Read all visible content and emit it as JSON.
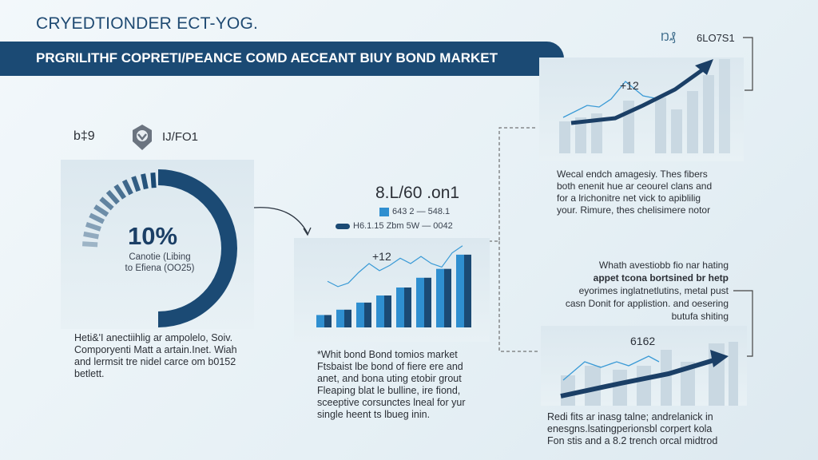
{
  "header": {
    "title": "CRYEDTIONDER ECT-YOG.",
    "banner": "PRGRILITHF COPRETI/PEANCE COMD AECEANT BIUY BOND MARKET"
  },
  "left": {
    "icon_label_1": "b‡9",
    "icon_label_2": "IJ/FO1",
    "gauge": {
      "value_text": "10%",
      "fill_fraction": 0.5,
      "sub_line1": "Canotie (Libing",
      "sub_line2": "to Efiena (OO25)"
    },
    "paragraph": [
      "Heti&'I anectiihlig ar ampolelo, Soiv.",
      "Comporyenti Matt a artain.Inet. Wiah",
      "and lermsit tre nidel carce om b0152",
      "betlett."
    ]
  },
  "middle": {
    "title": "8.L/60 .on1",
    "legend": [
      {
        "label": "643 2 — 548.1",
        "color": "#2f8fd0"
      },
      {
        "label": "H6.1.15 Zbm 5W — 0042",
        "color": "#1b4a74"
      }
    ],
    "chart_label": "+12",
    "bars": [
      14,
      20,
      28,
      36,
      45,
      56,
      66,
      82
    ],
    "line": [
      52,
      46,
      50,
      62,
      72,
      64,
      70,
      78,
      72,
      80,
      72,
      68,
      84,
      92
    ],
    "paragraph": [
      "*Whit bond Bond tomios market",
      "Ftsbaist lbe bond of fiere ere and",
      "anet, and bona uting etobir grout",
      "Fleaping blat le bulline, ire fiond,",
      "sceeptive corsunctes lneal for yur",
      "single heent ts lbueg inin."
    ]
  },
  "right_top": {
    "label": "6LO7S1",
    "icon_label": "Ŋ₰",
    "chart_label": "+12",
    "paragraph": [
      "Wecal endch amagesiy.  Thes fibers",
      "both enenit hue ar ceourel clans and",
      "for a lrichonitre net vick to apiblilig",
      "your. Rimure, thes chelisimere notor"
    ]
  },
  "right_bottom": {
    "intro": [
      "Whath avestiobb fio nar hating",
      "appet tcona bortsined br hetp",
      "eyorimes inglatnetlutins, metal pust",
      "casn Donit for applistion. and oesering",
      "butufa shiting"
    ],
    "chart_label": "6162",
    "paragraph": [
      "Redi fits ar inasg talne; andrelanick in",
      "enesgns.lsatingperionsbl corpert kola",
      "Fon stis and a 8.2 trench orcal midtrod"
    ]
  },
  "colors": {
    "navy": "#1b4a74",
    "blue": "#2f8fd0",
    "bg": "#eef5f8"
  }
}
